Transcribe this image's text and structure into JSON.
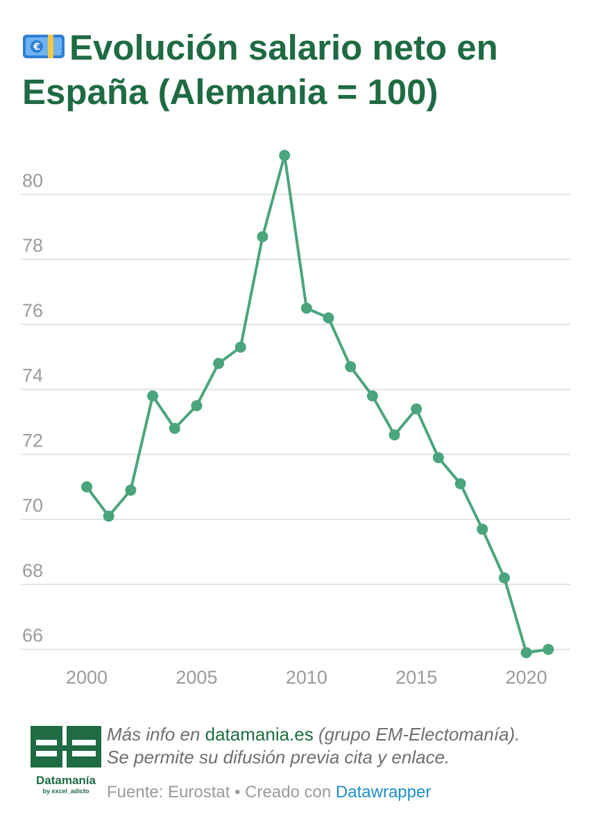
{
  "title": {
    "icon": "euro-banknote-icon",
    "text": "Evolución salario neto en España (Alemania = 100)"
  },
  "colors": {
    "title": "#1f6b43",
    "line": "#4aa57c",
    "grid": "#e2e2e2",
    "tick": "#9a9a9a",
    "link_dw": "#1f8fc9"
  },
  "chart_data": {
    "type": "line",
    "title": "Evolución salario neto en España (Alemania = 100)",
    "xlabel": "",
    "ylabel": "",
    "x": [
      2000,
      2001,
      2002,
      2003,
      2004,
      2005,
      2006,
      2007,
      2008,
      2009,
      2010,
      2011,
      2012,
      2013,
      2014,
      2015,
      2016,
      2017,
      2018,
      2019,
      2020,
      2021
    ],
    "series": [
      {
        "values": [
          71.0,
          70.1,
          70.9,
          73.8,
          72.8,
          73.5,
          74.8,
          75.3,
          78.7,
          81.2,
          76.5,
          76.2,
          74.7,
          73.8,
          72.6,
          73.4,
          71.9,
          71.1,
          69.7,
          68.2,
          65.9,
          66.0
        ]
      }
    ],
    "x_ticks": [
      "2000",
      "2005",
      "2010",
      "2015",
      "2020"
    ],
    "y_ticks": [
      "66",
      "68",
      "70",
      "72",
      "74",
      "76",
      "78",
      "80"
    ],
    "xlim": [
      1997,
      2022
    ],
    "ylim": [
      65.8,
      81.8
    ],
    "grid": "horizontal",
    "markers": true
  },
  "footer": {
    "logo_name": "Datamanía",
    "logo_sub": "by excel_adicto",
    "note_prefix": "Más info en ",
    "note_link": "datamania.es",
    "note_suffix": " (grupo EM-Electomanía).",
    "note_line2": "Se permite su difusión previa cita y enlace.",
    "source_text": "Fuente: Eurostat • Creado con ",
    "source_link": "Datawrapper"
  }
}
